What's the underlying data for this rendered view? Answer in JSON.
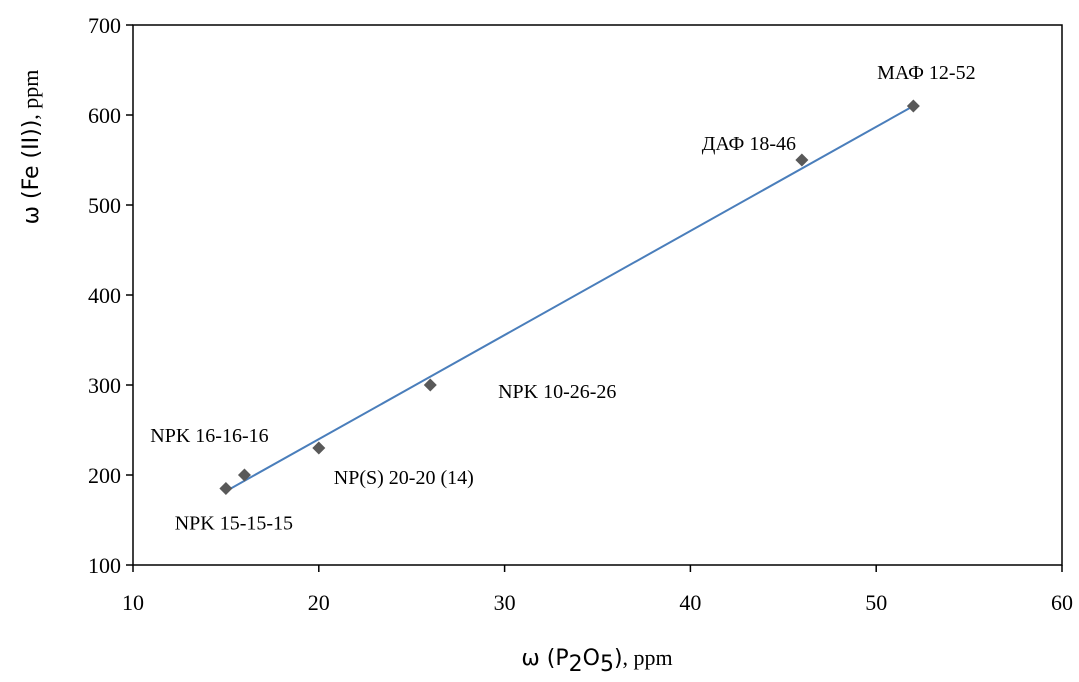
{
  "chart_data": {
    "type": "scatter",
    "title": "",
    "xlabel": {
      "prefix": "ω (P",
      "sub1": "2",
      "mid": "O",
      "sub2": "5",
      "close": ")",
      "unit": ", ppm"
    },
    "ylabel": {
      "main": "ω (Fe (II))",
      "unit": ", ppm"
    },
    "xlim": [
      10,
      60
    ],
    "ylim": [
      100,
      700
    ],
    "xticks": [
      10,
      20,
      30,
      40,
      50,
      60
    ],
    "yticks": [
      100,
      200,
      300,
      400,
      500,
      600,
      700
    ],
    "grid": false,
    "marker": "diamond",
    "marker_color": "#595959",
    "trendline_color": "#4a7ebb",
    "points": [
      {
        "label": "NPK 15-15-15",
        "x": 15,
        "y": 185
      },
      {
        "label": "NPK 16-16-16",
        "x": 16,
        "y": 200
      },
      {
        "label": "NP(S) 20-20 (14)",
        "x": 20,
        "y": 230
      },
      {
        "label": "NPK 10-26-26",
        "x": 26,
        "y": 300
      },
      {
        "label": "ДАФ 18-46",
        "x": 46,
        "y": 550
      },
      {
        "label": "МАФ 12-52",
        "x": 52,
        "y": 610
      }
    ],
    "trendline": {
      "x": [
        15,
        52
      ],
      "y": [
        182,
        610
      ]
    }
  }
}
